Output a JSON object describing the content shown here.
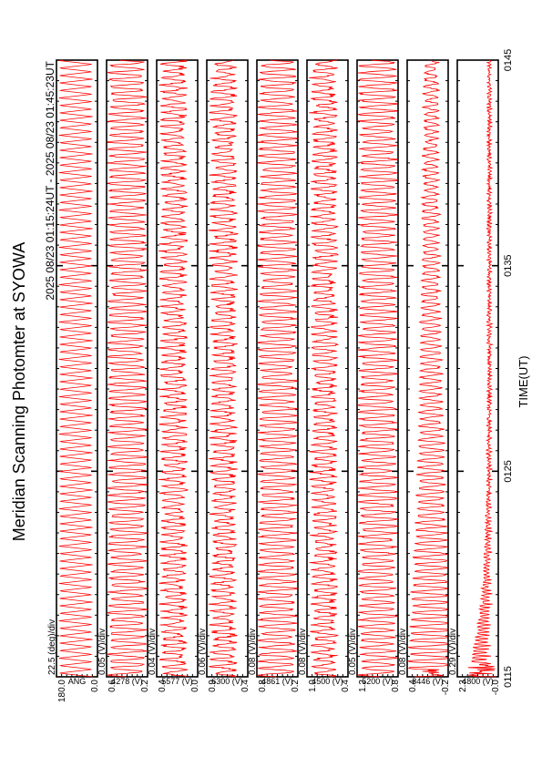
{
  "title": "Meridian Scanning Photomter at SYOWA",
  "chart_data": {
    "type": "line",
    "title": "Meridian Scanning Photomter at SYOWA",
    "subtitle": "2025 08/23 01:15:24UT - 2025 08/23 01:45:23UT",
    "xlabel": "TIME(UT)",
    "x_ticks": [
      "0115",
      "0125",
      "0135",
      "0145"
    ],
    "x_range": [
      "01:15:24",
      "01:45:23"
    ],
    "trace_color": "#ff0000",
    "grid": false,
    "panels": [
      {
        "name": "ANG",
        "scale_label": "22.5 (deg)/div",
        "y_ticks": [
          "0.0",
          "180.0"
        ],
        "ylim": [
          0,
          180
        ],
        "pattern": "scan"
      },
      {
        "name": "4278 (V)",
        "scale_label": "0.05 (V)/div",
        "y_ticks": [
          "0.2",
          "0.6"
        ],
        "ylim": [
          0.2,
          0.6
        ],
        "pattern": "dense"
      },
      {
        "name": "5577 (V)",
        "scale_label": "0.04 (V)/div",
        "y_ticks": [
          "0.0",
          "0.4"
        ],
        "ylim": [
          0.0,
          0.4
        ],
        "pattern": "spiky"
      },
      {
        "name": "6300 (V)",
        "scale_label": "0.06 (V)/div",
        "y_ticks": [
          "0.4",
          "0.9"
        ],
        "ylim": [
          0.4,
          0.9
        ],
        "pattern": "spiky"
      },
      {
        "name": "4861 (V)",
        "scale_label": "0.08 (V)/div",
        "y_ticks": [
          "0.2",
          "0.8"
        ],
        "ylim": [
          0.2,
          0.8
        ],
        "pattern": "dense"
      },
      {
        "name": "4500 (V)",
        "scale_label": "0.08 (V)/div",
        "y_ticks": [
          "0.4",
          "1.0"
        ],
        "ylim": [
          0.4,
          1.0
        ],
        "pattern": "spiky"
      },
      {
        "name": "5200 (V)",
        "scale_label": "0.05 (V)/div",
        "y_ticks": [
          "0.8",
          "1.2"
        ],
        "ylim": [
          0.8,
          1.2
        ],
        "pattern": "dense"
      },
      {
        "name": "8446 (V)",
        "scale_label": "0.08 (V)/div",
        "y_ticks": [
          "-0.2",
          "0.4"
        ],
        "ylim": [
          -0.2,
          0.4
        ],
        "pattern": "decay"
      },
      {
        "name": "4800 (V)",
        "scale_label": "0.29 (V)/div",
        "y_ticks": [
          "-0.0",
          "2.3"
        ],
        "ylim": [
          0.0,
          2.3
        ],
        "pattern": "burst"
      }
    ]
  }
}
